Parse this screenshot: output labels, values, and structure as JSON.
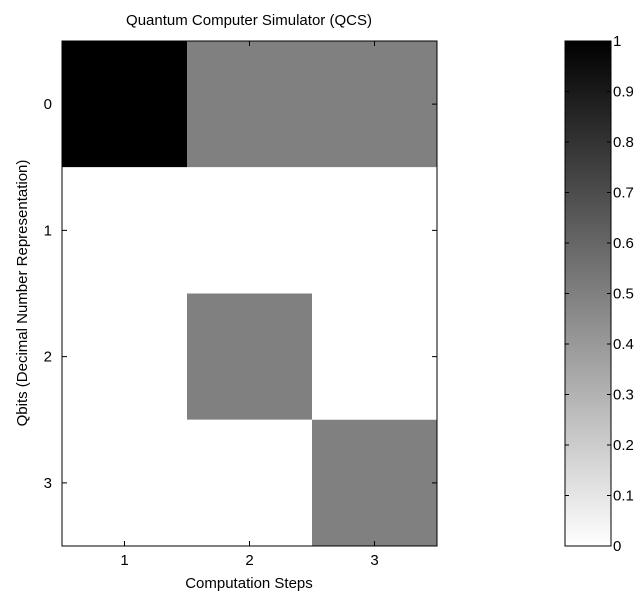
{
  "chart_data": {
    "type": "heatmap",
    "title": "Quantum Computer Simulator (QCS)",
    "xlabel": "Computation Steps",
    "ylabel": "Qbits (Decimal Number Representation)",
    "x_categories": [
      "1",
      "2",
      "3"
    ],
    "y_categories": [
      "0",
      "1",
      "2",
      "3"
    ],
    "values": [
      [
        1.0,
        0.5,
        0.5
      ],
      [
        0.0,
        0.0,
        0.0
      ],
      [
        0.0,
        0.5,
        0.0
      ],
      [
        0.0,
        0.0,
        0.5
      ]
    ],
    "colormap": "gray-reversed",
    "colorbar": {
      "range": [
        0,
        1
      ],
      "ticks": [
        "0",
        "0.1",
        "0.2",
        "0.3",
        "0.4",
        "0.5",
        "0.6",
        "0.7",
        "0.8",
        "0.9",
        "1"
      ],
      "placement": "right"
    },
    "grid": false
  }
}
